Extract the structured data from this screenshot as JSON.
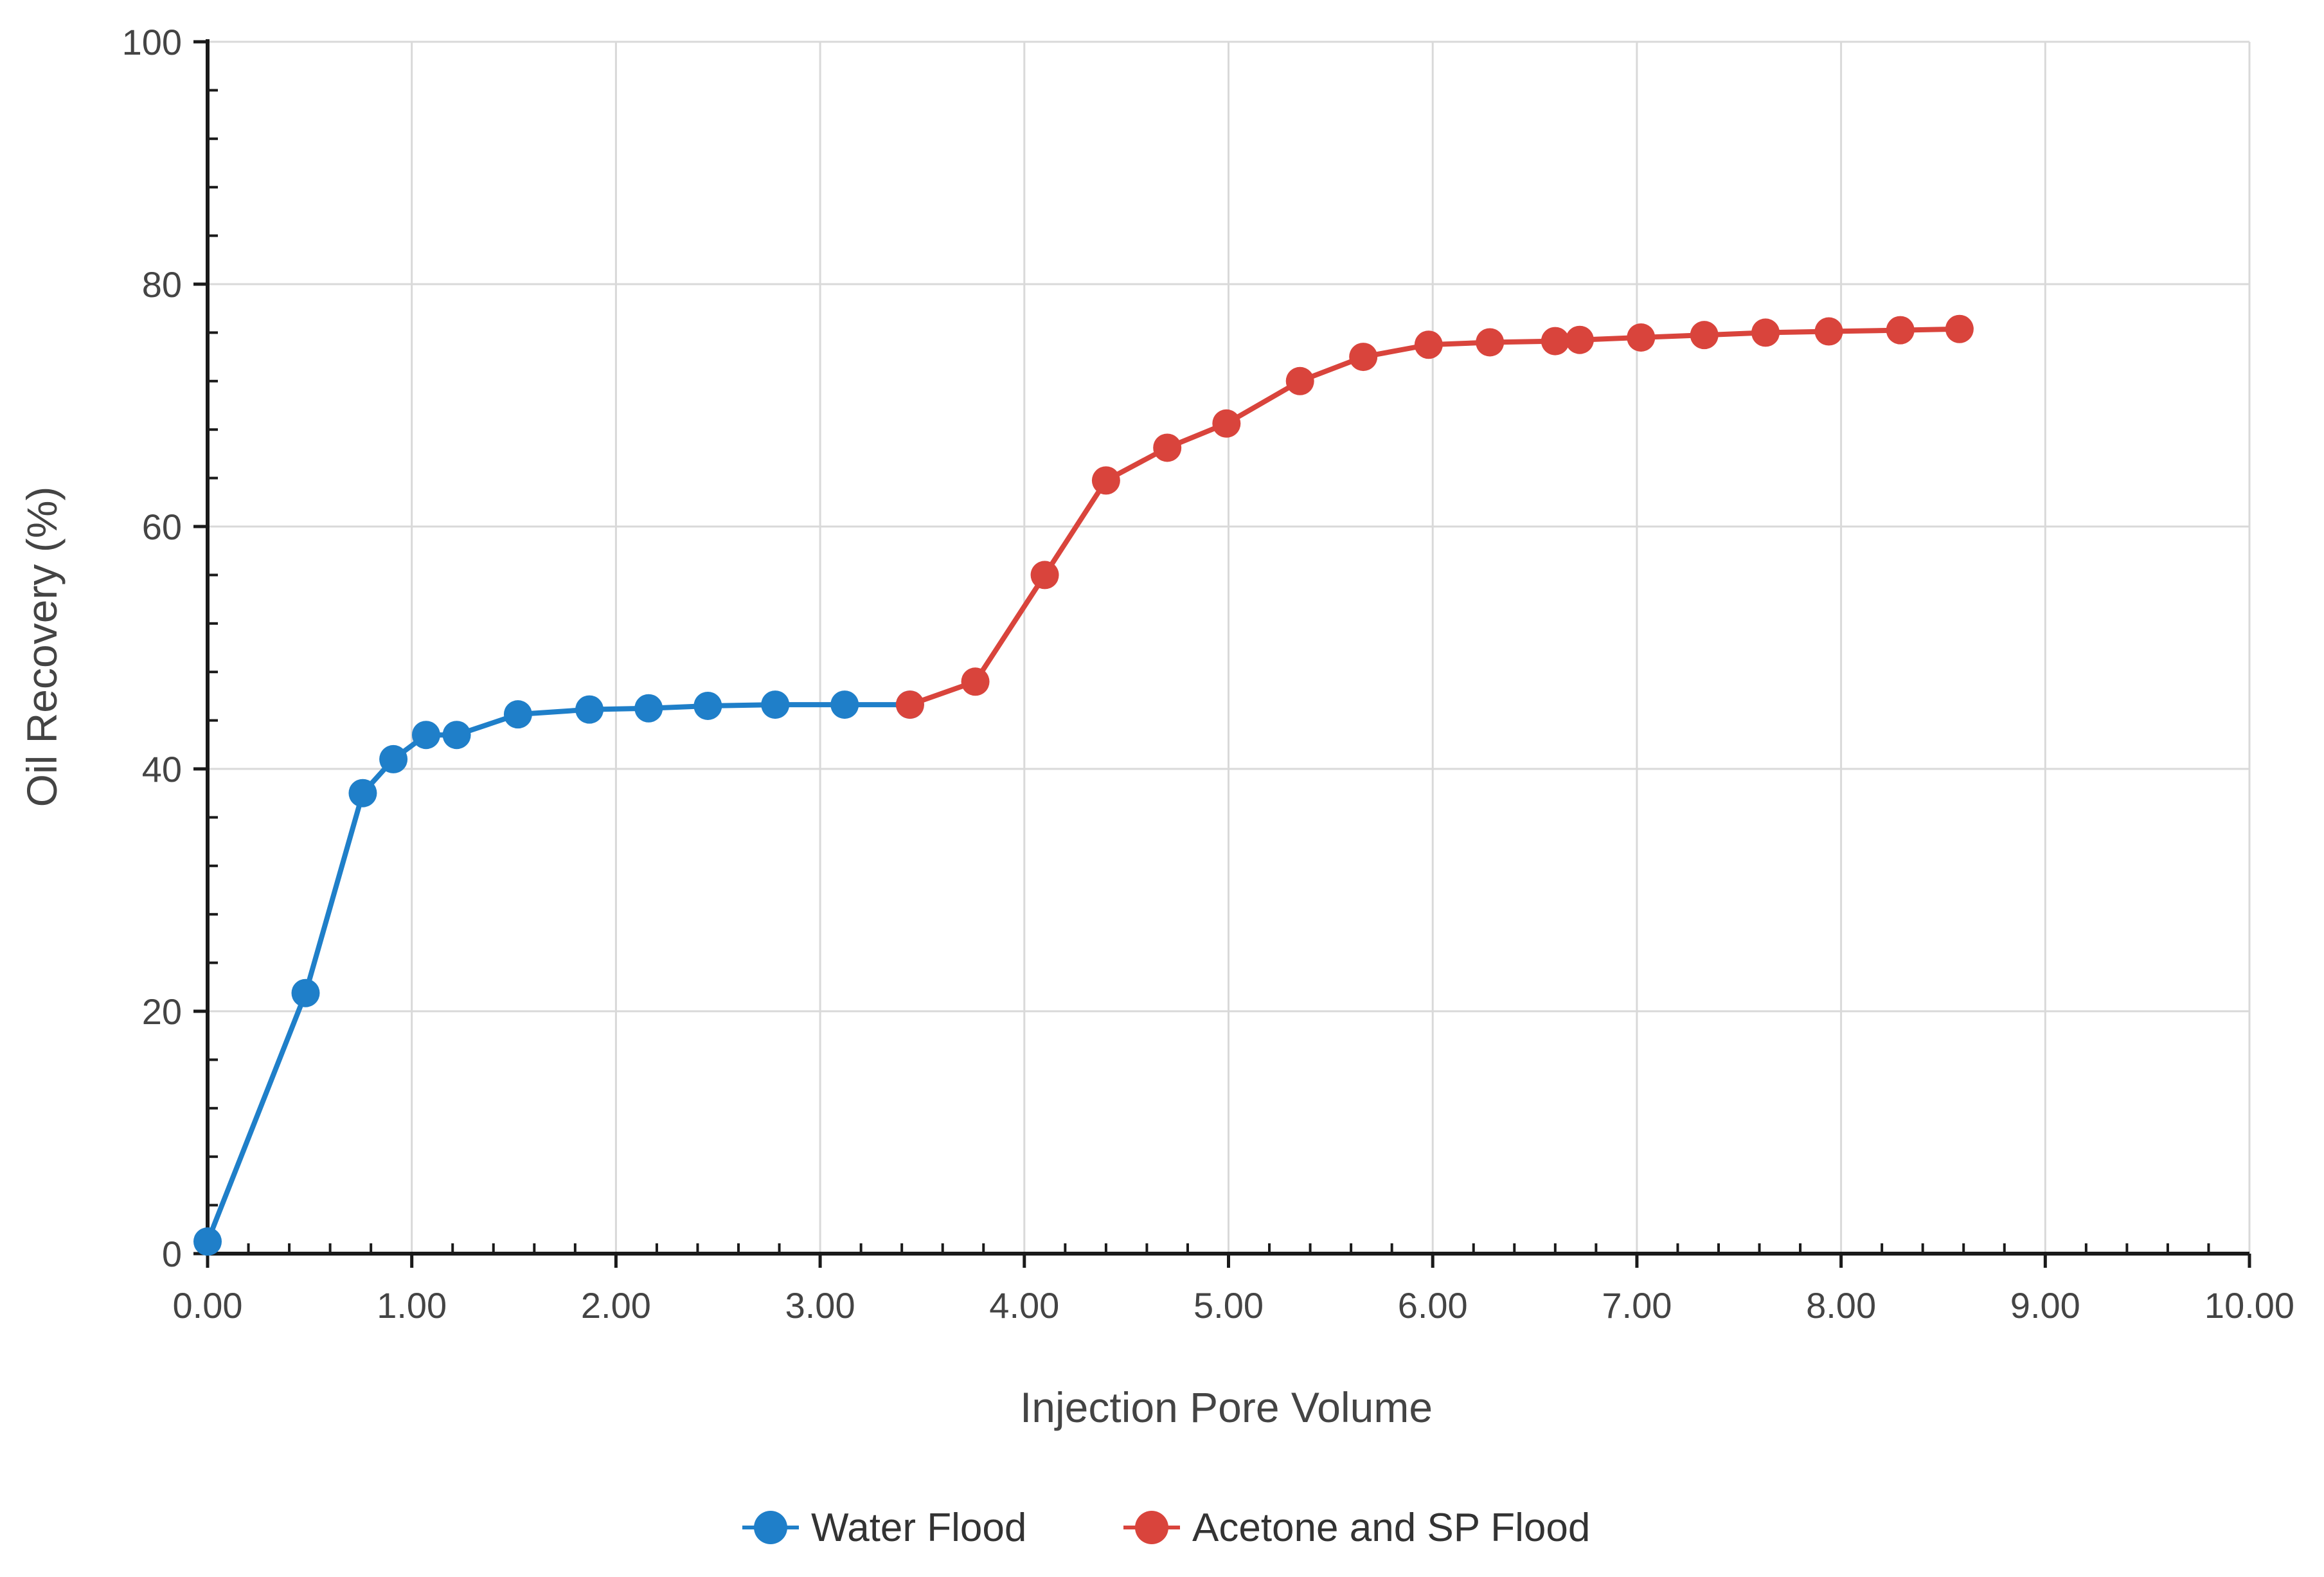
{
  "chart_data": {
    "type": "line",
    "title": "",
    "xlabel": "Injection Pore Volume",
    "ylabel": "Oil Recovery (%)",
    "xlim": [
      0,
      10
    ],
    "ylim": [
      0,
      100
    ],
    "x_tick_values": [
      0,
      1,
      2,
      3,
      4,
      5,
      6,
      7,
      8,
      9,
      10
    ],
    "x_tick_labels": [
      "0.00",
      "1.00",
      "2.00",
      "3.00",
      "4.00",
      "5.00",
      "6.00",
      "7.00",
      "8.00",
      "9.00",
      "10.00"
    ],
    "y_tick_values": [
      0,
      20,
      40,
      60,
      80,
      100
    ],
    "y_tick_labels": [
      "0",
      "20",
      "40",
      "60",
      "80",
      "100"
    ],
    "grid": true,
    "legend_position": "bottom-center",
    "series": [
      {
        "name": "Water Flood",
        "color": "#1f7fc9",
        "points": [
          [
            0.0,
            1.0
          ],
          [
            0.48,
            21.5
          ],
          [
            0.76,
            38.0
          ],
          [
            0.91,
            40.8
          ],
          [
            1.07,
            42.8
          ],
          [
            1.22,
            42.8
          ],
          [
            1.52,
            44.5
          ],
          [
            1.87,
            44.9
          ],
          [
            2.16,
            45.0
          ],
          [
            2.45,
            45.2
          ],
          [
            2.78,
            45.3
          ],
          [
            3.12,
            45.3
          ],
          [
            3.44,
            45.3
          ]
        ]
      },
      {
        "name": "Acetone and SP Flood",
        "color": "#d9443c",
        "points": [
          [
            3.44,
            45.3
          ],
          [
            3.76,
            47.2
          ],
          [
            4.1,
            56.0
          ],
          [
            4.4,
            63.8
          ],
          [
            4.7,
            66.5
          ],
          [
            4.99,
            68.5
          ],
          [
            5.35,
            72.0
          ],
          [
            5.66,
            74.0
          ],
          [
            5.98,
            75.0
          ],
          [
            6.28,
            75.2
          ],
          [
            6.6,
            75.3
          ],
          [
            6.72,
            75.4
          ],
          [
            7.02,
            75.6
          ],
          [
            7.33,
            75.8
          ],
          [
            7.63,
            76.0
          ],
          [
            7.94,
            76.1
          ],
          [
            8.29,
            76.2
          ],
          [
            8.58,
            76.3
          ]
        ]
      }
    ]
  }
}
